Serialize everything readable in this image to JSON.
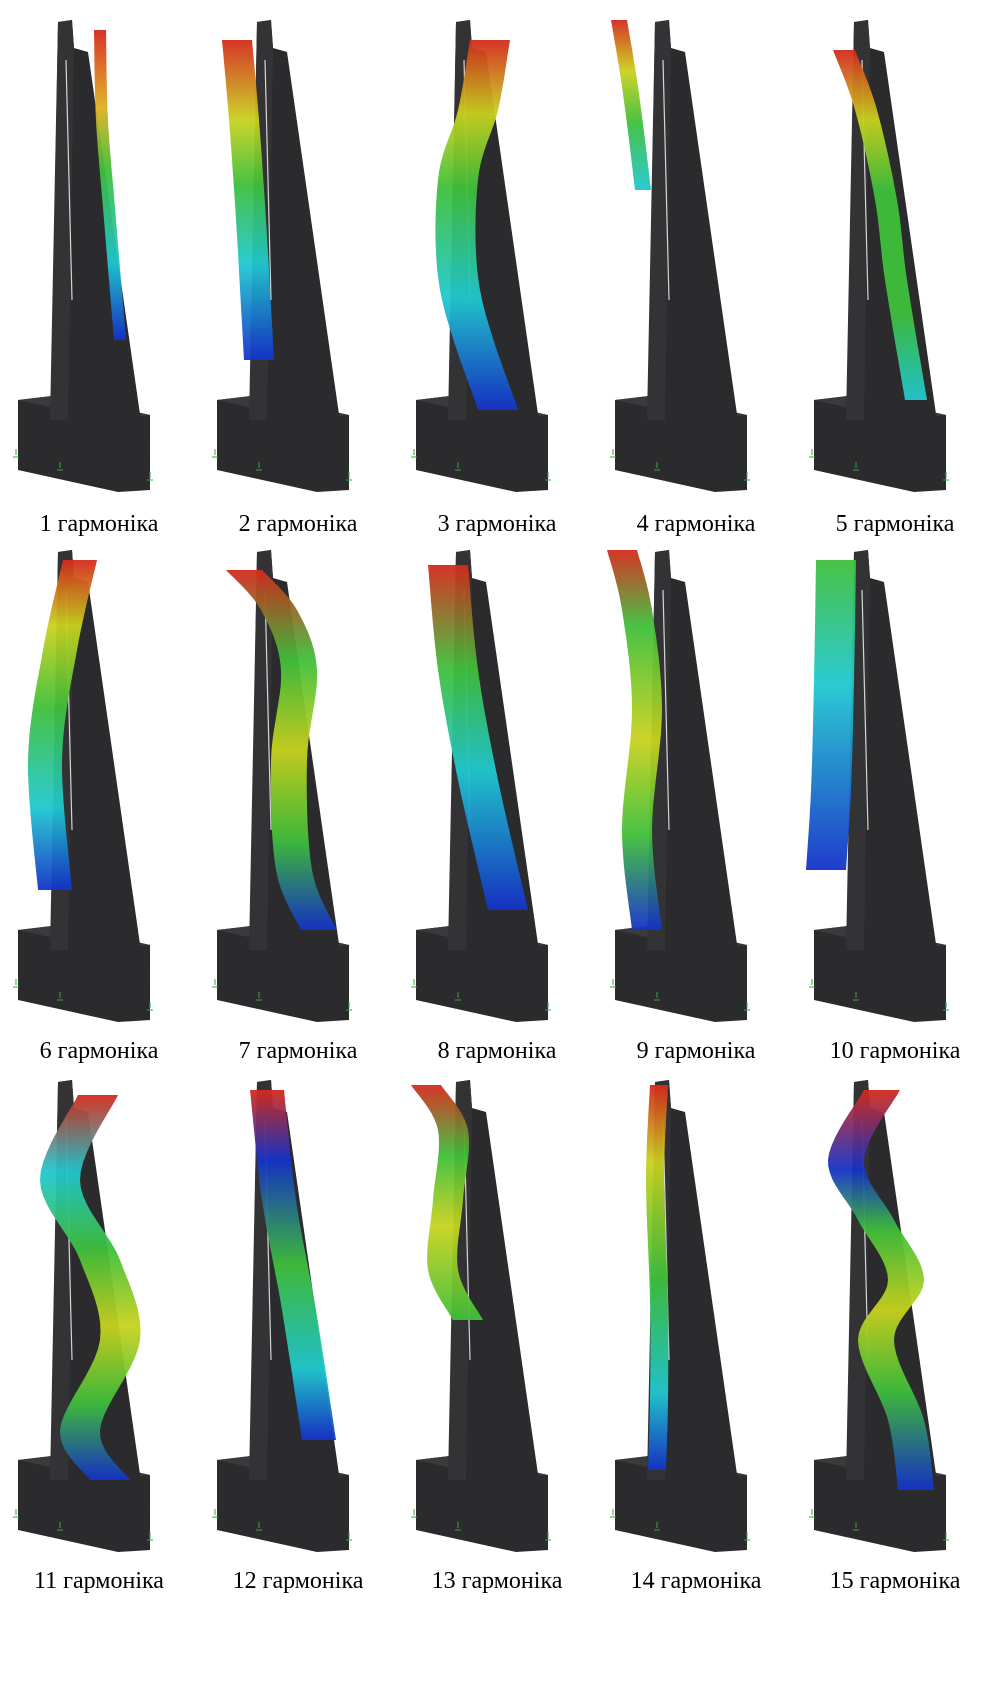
{
  "figure": {
    "modes": [
      {
        "label": "1 гармоніка",
        "mode": 1
      },
      {
        "label": "2 гармоніка",
        "mode": 2
      },
      {
        "label": "3 гармоніка",
        "mode": 3
      },
      {
        "label": "4 гармоніка",
        "mode": 4
      },
      {
        "label": "5 гармоніка",
        "mode": 5
      },
      {
        "label": "6 гармоніка",
        "mode": 6
      },
      {
        "label": "7 гармоніка",
        "mode": 7
      },
      {
        "label": "8 гармоніка",
        "mode": 8
      },
      {
        "label": "9 гармоніка",
        "mode": 9
      },
      {
        "label": "10 гармоніка",
        "mode": 10
      },
      {
        "label": "11 гармоніка",
        "mode": 11
      },
      {
        "label": "12 гармоніка",
        "mode": 12
      },
      {
        "label": "13 гармоніка",
        "mode": 13
      },
      {
        "label": "14 гармоніка",
        "mode": 14
      },
      {
        "label": "15 гармоніка",
        "mode": 15
      }
    ],
    "colors": {
      "structure": "#2b2b2d",
      "high": "#d42a1c",
      "mid": "#3fbf3a",
      "low": "#1432c8",
      "support_marker": "#3aa43a"
    }
  }
}
